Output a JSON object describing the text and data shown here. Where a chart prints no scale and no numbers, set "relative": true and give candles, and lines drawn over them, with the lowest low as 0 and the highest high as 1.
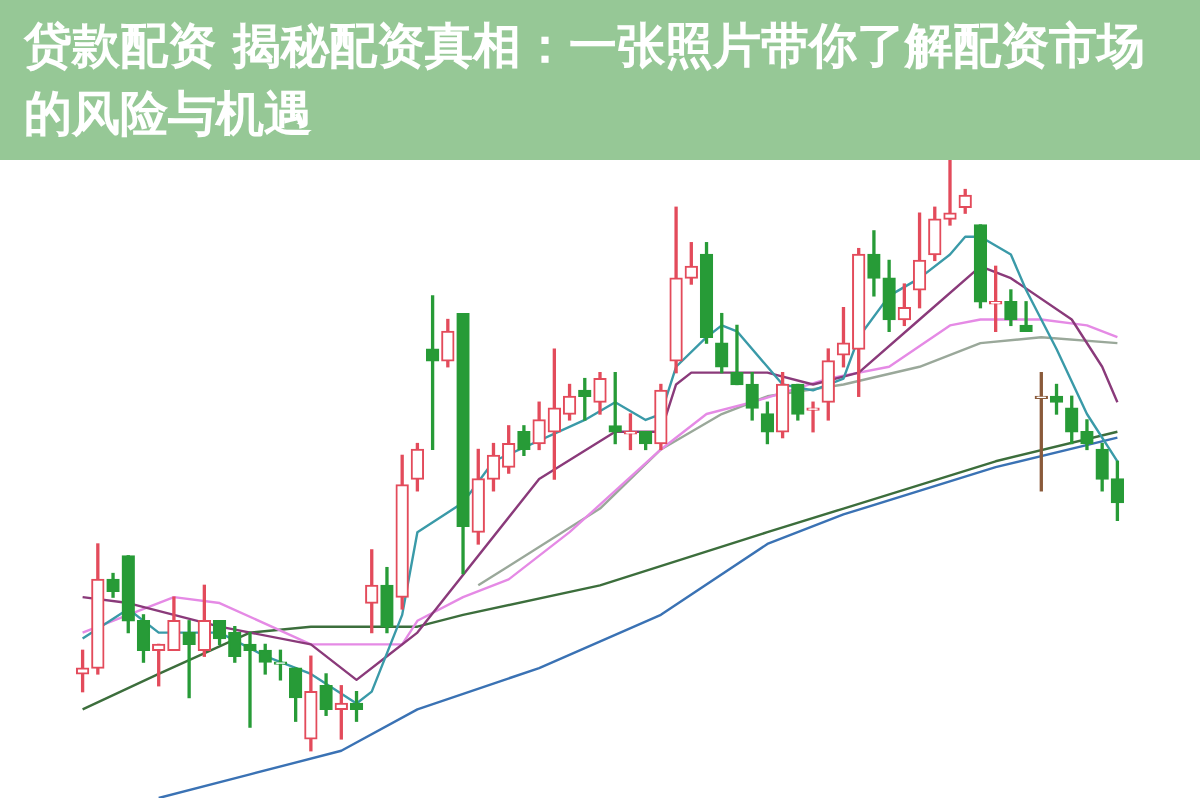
{
  "chart_data": {
    "type": "candlestick",
    "title": "贷款配资 揭秘配资真相：一张照片带你了解配资市场的风险与机遇",
    "relative": true,
    "marker": "none",
    "categories": [
      null,
      null,
      null,
      null,
      null,
      null,
      null,
      null,
      null,
      null,
      null,
      null,
      null,
      null,
      null,
      null,
      null,
      null,
      null,
      null,
      null,
      null,
      null,
      null,
      null,
      null,
      null,
      null,
      null,
      null,
      null,
      null,
      null,
      null,
      null,
      null,
      null,
      null,
      null,
      null,
      null,
      null,
      null,
      null,
      null,
      null,
      null,
      null,
      null,
      null,
      null,
      null,
      null,
      null,
      null,
      null,
      null,
      null,
      null,
      null,
      null,
      null,
      null,
      null,
      null,
      null,
      null,
      null,
      null
    ],
    "ohlc": [
      [
        0.13,
        0.17,
        0.1,
        0.14
      ],
      [
        0.14,
        0.35,
        0.13,
        0.29
      ],
      [
        0.29,
        0.3,
        0.26,
        0.27
      ],
      [
        0.33,
        0.33,
        0.2,
        0.22
      ],
      [
        0.22,
        0.23,
        0.15,
        0.17
      ],
      [
        0.17,
        0.18,
        0.11,
        0.18
      ],
      [
        0.17,
        0.26,
        0.17,
        0.22
      ],
      [
        0.2,
        0.22,
        0.09,
        0.18
      ],
      [
        0.17,
        0.28,
        0.16,
        0.22
      ],
      [
        0.22,
        0.22,
        0.18,
        0.19
      ],
      [
        0.2,
        0.21,
        0.15,
        0.16
      ],
      [
        0.18,
        0.2,
        0.04,
        0.17
      ],
      [
        0.17,
        0.18,
        0.13,
        0.15
      ],
      [
        0.15,
        0.17,
        0.12,
        0.15
      ],
      [
        0.14,
        0.14,
        0.05,
        0.09
      ],
      [
        0.02,
        0.16,
        0,
        0.1
      ],
      [
        0.11,
        0.13,
        0.06,
        0.07
      ],
      [
        0.07,
        0.11,
        0.02,
        0.08
      ],
      [
        0.08,
        0.1,
        0.05,
        0.07
      ],
      [
        0.25,
        0.34,
        0.2,
        0.28
      ],
      [
        0.28,
        0.31,
        0.2,
        0.21
      ],
      [
        0.26,
        0.5,
        0.24,
        0.45
      ],
      [
        0.46,
        0.52,
        0.44,
        0.51
      ],
      [
        0.68,
        0.77,
        0.51,
        0.66
      ],
      [
        0.66,
        0.73,
        0.65,
        0.71
      ],
      [
        0.74,
        0.74,
        0.3,
        0.38
      ],
      [
        0.37,
        0.51,
        0.35,
        0.46
      ],
      [
        0.46,
        0.52,
        0.44,
        0.5
      ],
      [
        0.48,
        0.55,
        0.47,
        0.52
      ],
      [
        0.54,
        0.55,
        0.5,
        0.51
      ],
      [
        0.52,
        0.59,
        0.51,
        0.56
      ],
      [
        0.54,
        0.68,
        0.46,
        0.58
      ],
      [
        0.57,
        0.62,
        0.56,
        0.6
      ],
      [
        0.61,
        0.63,
        0.56,
        0.6
      ],
      [
        0.59,
        0.64,
        0.57,
        0.63
      ],
      [
        0.55,
        0.64,
        0.52,
        0.54
      ],
      [
        0.54,
        0.57,
        0.51,
        0.54
      ],
      [
        0.54,
        0.54,
        0.51,
        0.52
      ],
      [
        0.52,
        0.62,
        0.51,
        0.61
      ],
      [
        0.66,
        0.92,
        0.64,
        0.8
      ],
      [
        0.8,
        0.86,
        0.79,
        0.82
      ],
      [
        0.84,
        0.86,
        0.69,
        0.7
      ],
      [
        0.69,
        0.74,
        0.64,
        0.65
      ],
      [
        0.64,
        0.72,
        0.62,
        0.62
      ],
      [
        0.62,
        0.64,
        0.56,
        0.58
      ],
      [
        0.57,
        0.59,
        0.52,
        0.54
      ],
      [
        0.54,
        0.64,
        0.53,
        0.62
      ],
      [
        0.62,
        0.62,
        0.56,
        0.57
      ],
      [
        0.58,
        0.59,
        0.54,
        0.58
      ],
      [
        0.59,
        0.68,
        0.56,
        0.66
      ],
      [
        0.67,
        0.75,
        0.65,
        0.69
      ],
      [
        0.68,
        0.85,
        0.6,
        0.84
      ],
      [
        0.84,
        0.88,
        0.77,
        0.8
      ],
      [
        0.8,
        0.83,
        0.71,
        0.73
      ],
      [
        0.73,
        0.79,
        0.72,
        0.75
      ],
      [
        0.78,
        0.91,
        0.75,
        0.83
      ],
      [
        0.84,
        0.92,
        0.83,
        0.9
      ],
      [
        0.9,
        1,
        0.89,
        0.91
      ],
      [
        0.92,
        0.95,
        0.91,
        0.94
      ],
      [
        0.89,
        0.89,
        0.75,
        0.76
      ],
      [
        0.76,
        0.82,
        0.71,
        0.76
      ],
      [
        0.76,
        0.78,
        0.72,
        0.73
      ],
      [
        0.72,
        0.76,
        0.71,
        0.71
      ],
      [
        0.6,
        0.64,
        0.44,
        0.6
      ],
      [
        0.6,
        0.62,
        0.57,
        0.59
      ],
      [
        0.58,
        0.6,
        0.52,
        0.54
      ],
      [
        0.54,
        0.56,
        0.51,
        0.52
      ],
      [
        0.51,
        0.52,
        0.44,
        0.46
      ],
      [
        0.46,
        0.49,
        0.39,
        0.42
      ]
    ],
    "colors": [
      "#e34b5b",
      "#e34b5b",
      "#279b37",
      "#279b37",
      "#279b37",
      "#e34b5b",
      "#e34b5b",
      "#279b37",
      "#e34b5b",
      "#279b37",
      "#279b37",
      "#279b37",
      "#279b37",
      "#279b37",
      "#279b37",
      "#e34b5b",
      "#279b37",
      "#e34b5b",
      "#279b37",
      "#e34b5b",
      "#279b37",
      "#e34b5b",
      "#e34b5b",
      "#279b37",
      "#e34b5b",
      "#279b37",
      "#e34b5b",
      "#e34b5b",
      "#e34b5b",
      "#279b37",
      "#e34b5b",
      "#e34b5b",
      "#e34b5b",
      "#279b37",
      "#e34b5b",
      "#279b37",
      "#e34b5b",
      "#279b37",
      "#e34b5b",
      "#e34b5b",
      "#e34b5b",
      "#279b37",
      "#279b37",
      "#279b37",
      "#279b37",
      "#279b37",
      "#e34b5b",
      "#279b37",
      "#e34b5b",
      "#e34b5b",
      "#e34b5b",
      "#e34b5b",
      "#279b37",
      "#279b37",
      "#e34b5b",
      "#e34b5b",
      "#e34b5b",
      "#e34b5b",
      "#e34b5b",
      "#279b37",
      "#e34b5b",
      "#279b37",
      "#279b37",
      "#8a5a3a",
      "#279b37",
      "#279b37",
      "#279b37",
      "#279b37",
      "#279b37"
    ],
    "series": [
      {
        "type": "line",
        "color": "#3a9aa8",
        "values": [
          0.19,
          null,
          null,
          0.24,
          null,
          0.2,
          null,
          null,
          null,
          0.2,
          null,
          null,
          0.16,
          null,
          null,
          0.13,
          null,
          null,
          0.08,
          0.1,
          null,
          0.23,
          0.37,
          null,
          null,
          0.42,
          null,
          0.49,
          null,
          null,
          null,
          null,
          null,
          0.56,
          null,
          0.59,
          null,
          0.56,
          0.57,
          0.65,
          null,
          0.7,
          0.72,
          0.71,
          null,
          0.65,
          0.62,
          null,
          0.61,
          null,
          0.63,
          0.7,
          null,
          0.77,
          null,
          0.8,
          null,
          0.84,
          0.87,
          0.87,
          null,
          0.84,
          0.78,
          null,
          0.68,
          null,
          0.57,
          null,
          0.49
        ]
      },
      {
        "type": "line",
        "color": "#8a3a7a",
        "values": [
          0.26,
          null,
          null,
          0.25,
          null,
          null,
          null,
          null,
          null,
          0.21,
          null,
          null,
          null,
          null,
          null,
          0.18,
          null,
          null,
          0.12,
          null,
          0.16,
          null,
          0.2,
          null,
          null,
          null,
          null,
          null,
          null,
          null,
          0.46,
          null,
          null,
          null,
          null,
          0.54,
          null,
          null,
          0.54,
          0.62,
          0.64,
          null,
          null,
          0.64,
          null,
          0.64,
          null,
          null,
          0.62,
          null,
          null,
          0.64,
          null,
          null,
          null,
          0.73,
          null,
          null,
          null,
          0.82,
          null,
          0.8,
          null,
          null,
          null,
          0.73,
          null,
          0.65,
          0.59
        ]
      },
      {
        "type": "line",
        "color": "#e58ae5",
        "values": [
          0.2,
          null,
          null,
          null,
          null,
          null,
          0.26,
          null,
          null,
          0.25,
          null,
          null,
          null,
          null,
          null,
          0.18,
          null,
          null,
          null,
          null,
          null,
          0.18,
          0.22,
          null,
          null,
          0.26,
          null,
          null,
          0.29,
          null,
          null,
          null,
          0.37,
          null,
          null,
          null,
          null,
          null,
          0.51,
          null,
          null,
          0.57,
          null,
          null,
          0.59,
          null,
          null,
          null,
          null,
          0.63,
          null,
          null,
          null,
          0.65,
          null,
          null,
          null,
          0.72,
          null,
          0.73,
          null,
          null,
          null,
          0.73,
          null,
          null,
          0.72,
          null,
          0.7
        ]
      },
      {
        "type": "line",
        "color": "#9aa89a",
        "values": [
          null,
          null,
          null,
          null,
          null,
          null,
          null,
          null,
          null,
          null,
          null,
          null,
          null,
          null,
          null,
          null,
          null,
          null,
          null,
          null,
          null,
          null,
          null,
          null,
          null,
          null,
          0.28,
          null,
          null,
          null,
          null,
          null,
          null,
          null,
          0.41,
          null,
          null,
          null,
          0.51,
          null,
          null,
          null,
          0.57,
          null,
          null,
          0.6,
          null,
          null,
          null,
          null,
          0.62,
          null,
          null,
          null,
          null,
          0.65,
          null,
          null,
          null,
          0.69,
          null,
          null,
          null,
          0.7,
          null,
          null,
          null,
          null,
          0.69
        ]
      },
      {
        "type": "line",
        "color": "#3c6e3c",
        "values": [
          0.07,
          null,
          null,
          null,
          null,
          0.13,
          null,
          null,
          null,
          null,
          null,
          0.2,
          null,
          null,
          null,
          0.21,
          null,
          null,
          null,
          null,
          null,
          null,
          0.21,
          null,
          null,
          0.23,
          null,
          null,
          null,
          null,
          null,
          null,
          null,
          null,
          0.28,
          null,
          null,
          null,
          null,
          null,
          null,
          null,
          null,
          null,
          null,
          0.37,
          null,
          null,
          null,
          null,
          0.41,
          null,
          null,
          null,
          null,
          null,
          null,
          null,
          null,
          null,
          0.49,
          null,
          null,
          null,
          null,
          null,
          null,
          null,
          0.54
        ]
      },
      {
        "type": "line",
        "color": "#3a72b4",
        "values": [
          null,
          null,
          null,
          null,
          null,
          -0.08,
          null,
          null,
          null,
          null,
          null,
          -0.04,
          null,
          null,
          null,
          null,
          null,
          0,
          null,
          null,
          null,
          null,
          0.07,
          null,
          null,
          null,
          null,
          null,
          null,
          null,
          0.14,
          null,
          null,
          null,
          null,
          null,
          null,
          null,
          0.23,
          null,
          null,
          null,
          null,
          null,
          null,
          0.35,
          null,
          null,
          null,
          null,
          0.4,
          null,
          null,
          null,
          null,
          null,
          null,
          null,
          null,
          null,
          0.48,
          null,
          null,
          null,
          null,
          null,
          null,
          null,
          0.53
        ]
      }
    ]
  }
}
